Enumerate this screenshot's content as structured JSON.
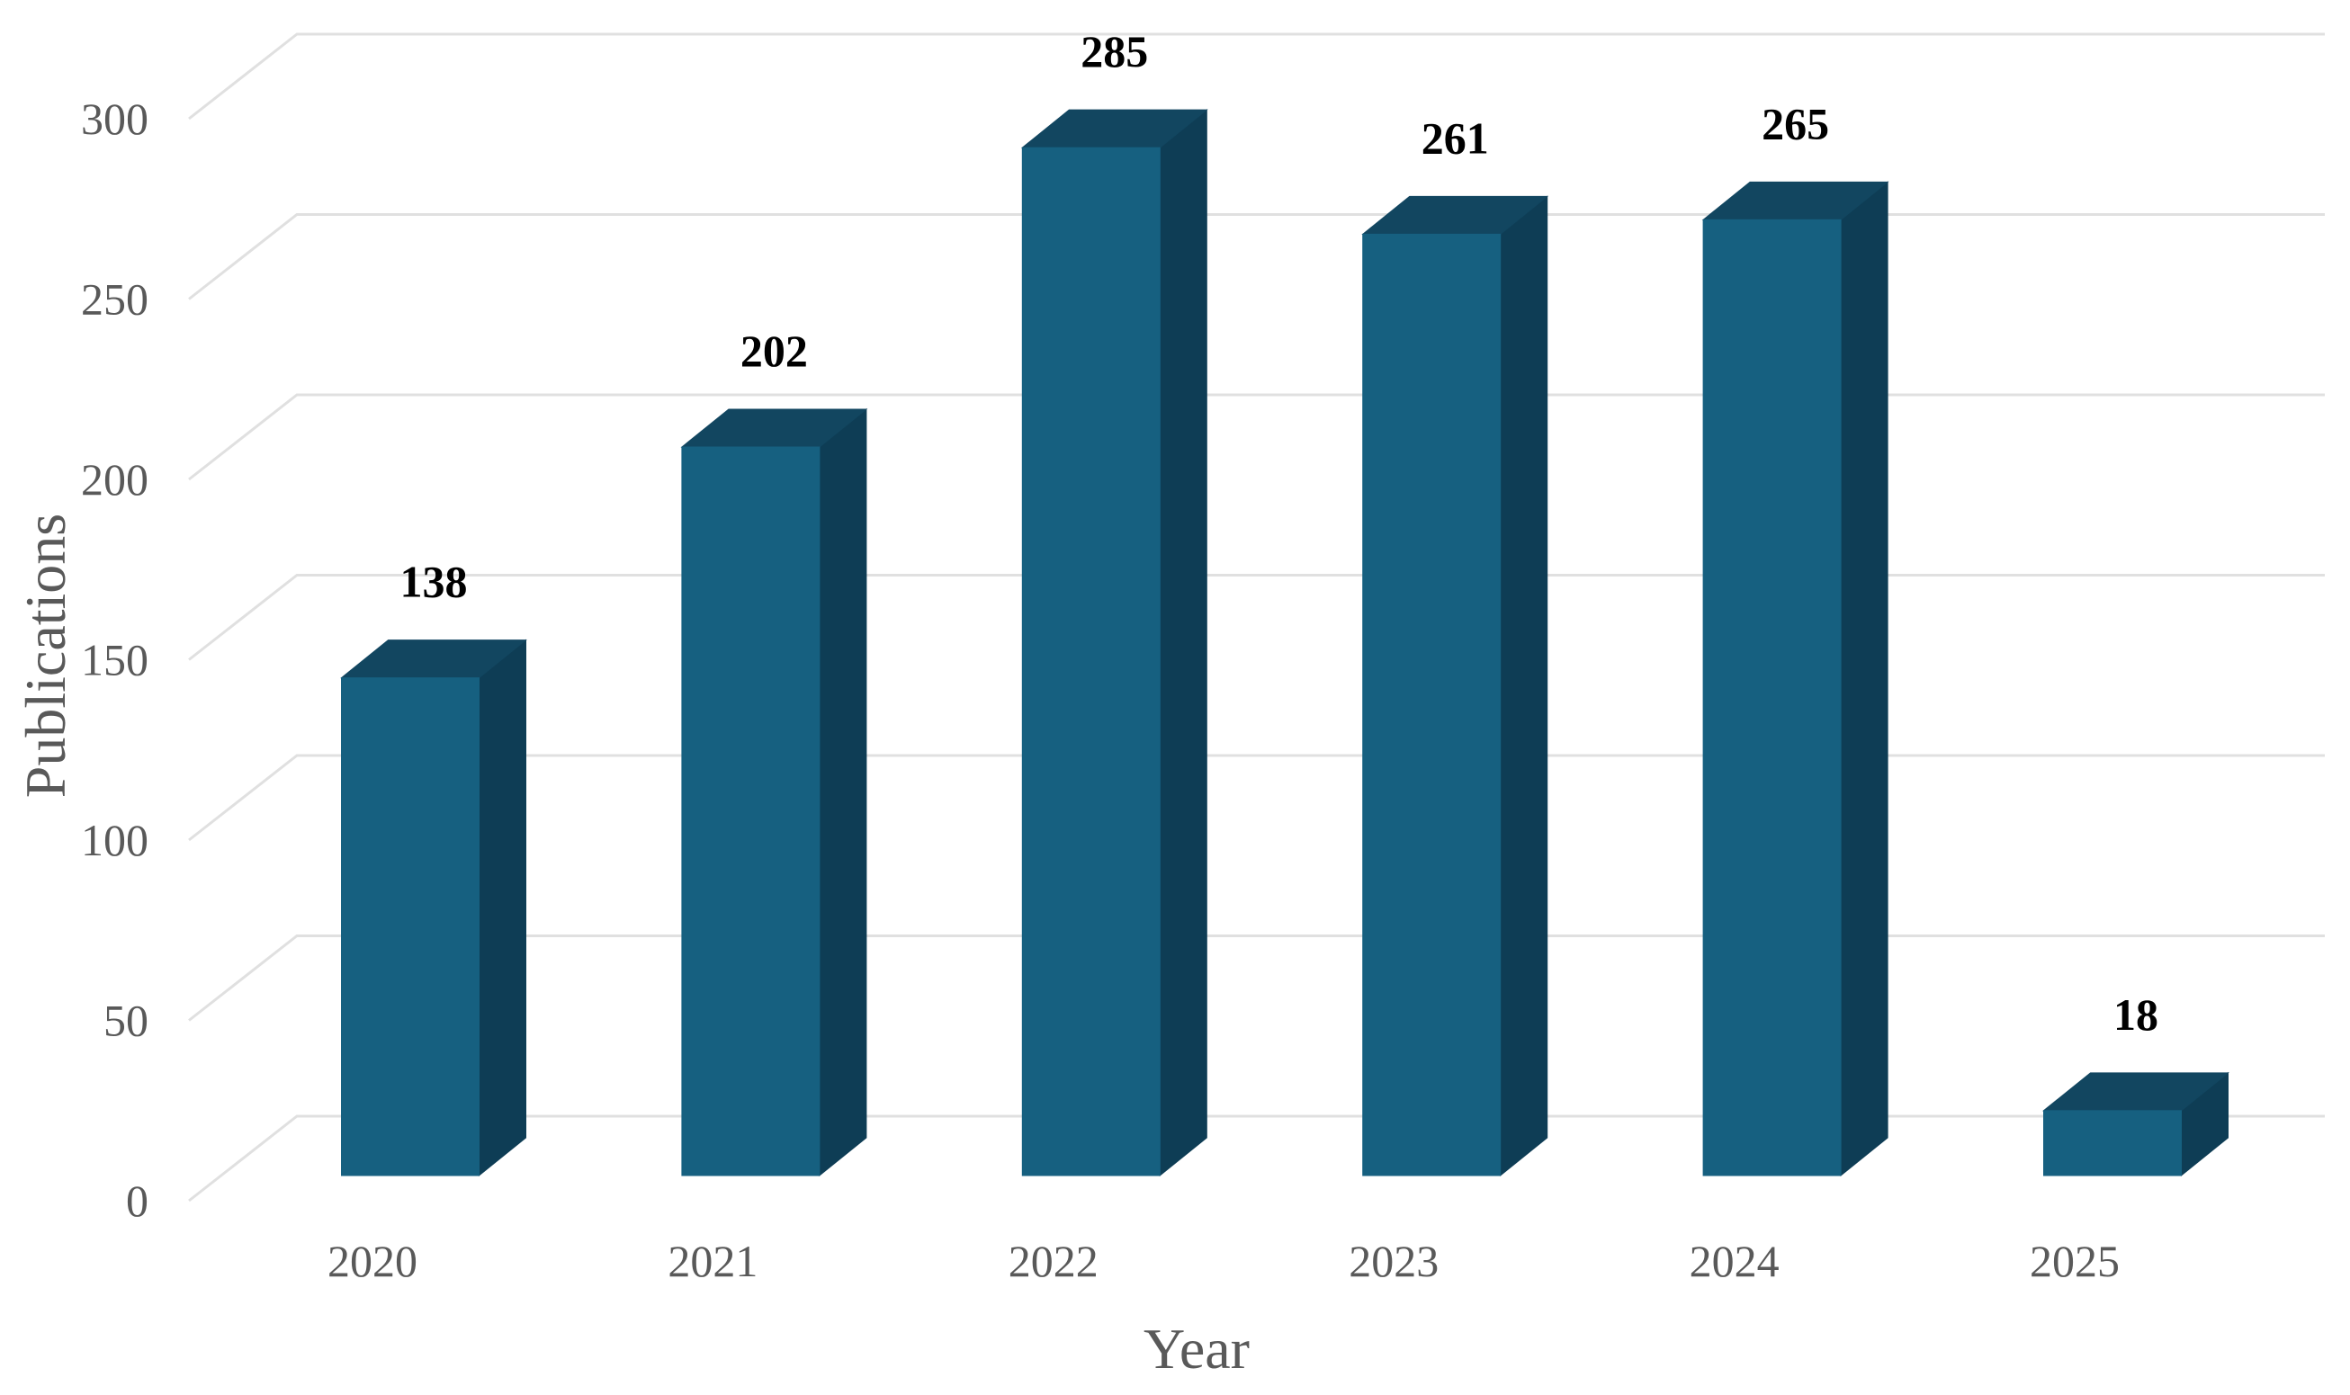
{
  "chart_data": {
    "type": "bar",
    "style": "3d-column",
    "title": "",
    "xlabel": "Year",
    "ylabel": "Publications",
    "categories": [
      "2020",
      "2021",
      "2022",
      "2023",
      "2024",
      "2025"
    ],
    "values": [
      138,
      202,
      285,
      261,
      265,
      18
    ],
    "yticks": [
      0,
      50,
      100,
      150,
      200,
      250,
      300
    ],
    "ylim": [
      0,
      300
    ],
    "grid": "horizontal-back-wall",
    "legend": "none",
    "colors": {
      "bar_front": "#166080",
      "bar_side": "#0e3d55",
      "bar_top": "#124660",
      "gridline": "#e0e0e0",
      "axis_text": "#595959",
      "data_label": "#000000",
      "background": "#ffffff"
    }
  }
}
